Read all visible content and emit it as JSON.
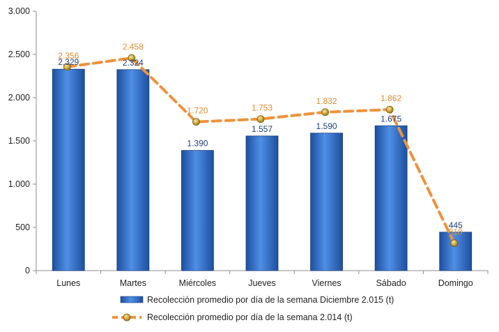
{
  "chart_data": {
    "type": "bar",
    "categories": [
      "Lunes",
      "Martes",
      "Miércoles",
      "Jueves",
      "Viernes",
      "Sábado",
      "Domingo"
    ],
    "ylim": [
      0,
      3000
    ],
    "yticks": [
      0,
      500,
      1000,
      1500,
      2000,
      2500,
      3000
    ],
    "ytick_labels": [
      "0",
      "500",
      "1.000",
      "1.500",
      "2.000",
      "2.500",
      "3.000"
    ],
    "grid": false,
    "legend_position": "bottom",
    "series": [
      {
        "name": "Recolección promedio por día de la semana Diciembre 2.015 (t)",
        "kind": "bar",
        "color": "#3b78d8",
        "values": [
          2329,
          2324,
          1390,
          1557,
          1590,
          1675,
          445
        ],
        "labels": [
          "2.329",
          "2.324",
          "1.390",
          "1.557",
          "1.590",
          "1.675",
          "445"
        ]
      },
      {
        "name": "Recolección promedio por día de la semana 2.014 (t)",
        "kind": "line",
        "color": "#f0913a",
        "values": [
          2356,
          2458,
          1720,
          1753,
          1832,
          1862,
          318
        ],
        "labels": [
          "2.356",
          "2.458",
          "1.720",
          "1.753",
          "1.832",
          "1.862",
          "318"
        ]
      }
    ]
  }
}
